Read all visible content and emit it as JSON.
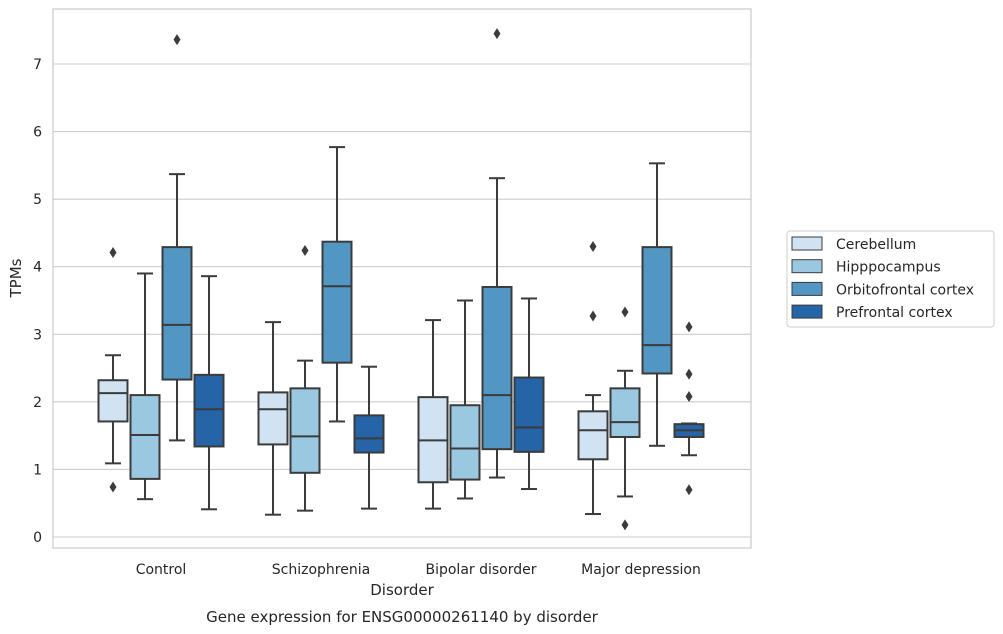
{
  "caption": "Gene expression for ENSG00000261140 by disorder",
  "chart_data": {
    "type": "box",
    "xlabel": "Disorder",
    "ylabel": "TPMs",
    "ylim": [
      -0.15,
      7.85
    ],
    "y_ticks": [
      0,
      1,
      2,
      3,
      4,
      5,
      6,
      7
    ],
    "grid": "horizontal",
    "legend_placement": "outside-right",
    "categories": [
      "Control",
      "Schizophrenia",
      "Bipolar disorder",
      "Major depression"
    ],
    "series": [
      {
        "name": "Cerebellum",
        "color": "#d1e2f2",
        "boxes": [
          {
            "whisker_low": 1.09,
            "q1": 1.71,
            "median": 2.13,
            "q3": 2.32,
            "whisker_high": 2.69,
            "outliers": [
              4.21,
              0.74
            ]
          },
          {
            "whisker_low": 0.33,
            "q1": 1.37,
            "median": 1.89,
            "q3": 2.14,
            "whisker_high": 3.18,
            "outliers": []
          },
          {
            "whisker_low": 0.42,
            "q1": 0.81,
            "median": 1.43,
            "q3": 2.07,
            "whisker_high": 3.21,
            "outliers": []
          },
          {
            "whisker_low": 0.34,
            "q1": 1.15,
            "median": 1.58,
            "q3": 1.86,
            "whisker_high": 2.1,
            "outliers": [
              4.3,
              3.27
            ]
          }
        ]
      },
      {
        "name": "Hipppocampus",
        "color": "#9ac8e0",
        "boxes": [
          {
            "whisker_low": 0.56,
            "q1": 0.86,
            "median": 1.51,
            "q3": 2.1,
            "whisker_high": 3.9,
            "outliers": []
          },
          {
            "whisker_low": 0.39,
            "q1": 0.95,
            "median": 1.49,
            "q3": 2.2,
            "whisker_high": 2.61,
            "outliers": [
              4.24
            ]
          },
          {
            "whisker_low": 0.57,
            "q1": 0.85,
            "median": 1.31,
            "q3": 1.95,
            "whisker_high": 3.5,
            "outliers": []
          },
          {
            "whisker_low": 0.6,
            "q1": 1.48,
            "median": 1.7,
            "q3": 2.2,
            "whisker_high": 2.46,
            "outliers": [
              3.33,
              0.18
            ]
          }
        ]
      },
      {
        "name": "Orbitofrontal cortex",
        "color": "#5296c4",
        "boxes": [
          {
            "whisker_low": 1.43,
            "q1": 2.33,
            "median": 3.14,
            "q3": 4.29,
            "whisker_high": 5.37,
            "outliers": [
              7.36
            ]
          },
          {
            "whisker_low": 1.71,
            "q1": 2.58,
            "median": 3.71,
            "q3": 4.37,
            "whisker_high": 5.77,
            "outliers": []
          },
          {
            "whisker_low": 0.88,
            "q1": 1.3,
            "median": 2.1,
            "q3": 3.7,
            "whisker_high": 5.31,
            "outliers": [
              7.45
            ]
          },
          {
            "whisker_low": 1.35,
            "q1": 2.42,
            "median": 2.84,
            "q3": 4.29,
            "whisker_high": 5.53,
            "outliers": []
          }
        ]
      },
      {
        "name": "Prefrontal cortex",
        "color": "#2565a7",
        "boxes": [
          {
            "whisker_low": 0.41,
            "q1": 1.34,
            "median": 1.89,
            "q3": 2.4,
            "whisker_high": 3.86,
            "outliers": []
          },
          {
            "whisker_low": 0.42,
            "q1": 1.25,
            "median": 1.46,
            "q3": 1.8,
            "whisker_high": 2.52,
            "outliers": []
          },
          {
            "whisker_low": 0.71,
            "q1": 1.26,
            "median": 1.62,
            "q3": 2.36,
            "whisker_high": 3.53,
            "outliers": []
          },
          {
            "whisker_low": 1.21,
            "q1": 1.48,
            "median": 1.58,
            "q3": 1.67,
            "whisker_high": 1.68,
            "outliers": [
              3.11,
              2.41,
              2.08,
              0.7
            ]
          }
        ]
      }
    ]
  }
}
